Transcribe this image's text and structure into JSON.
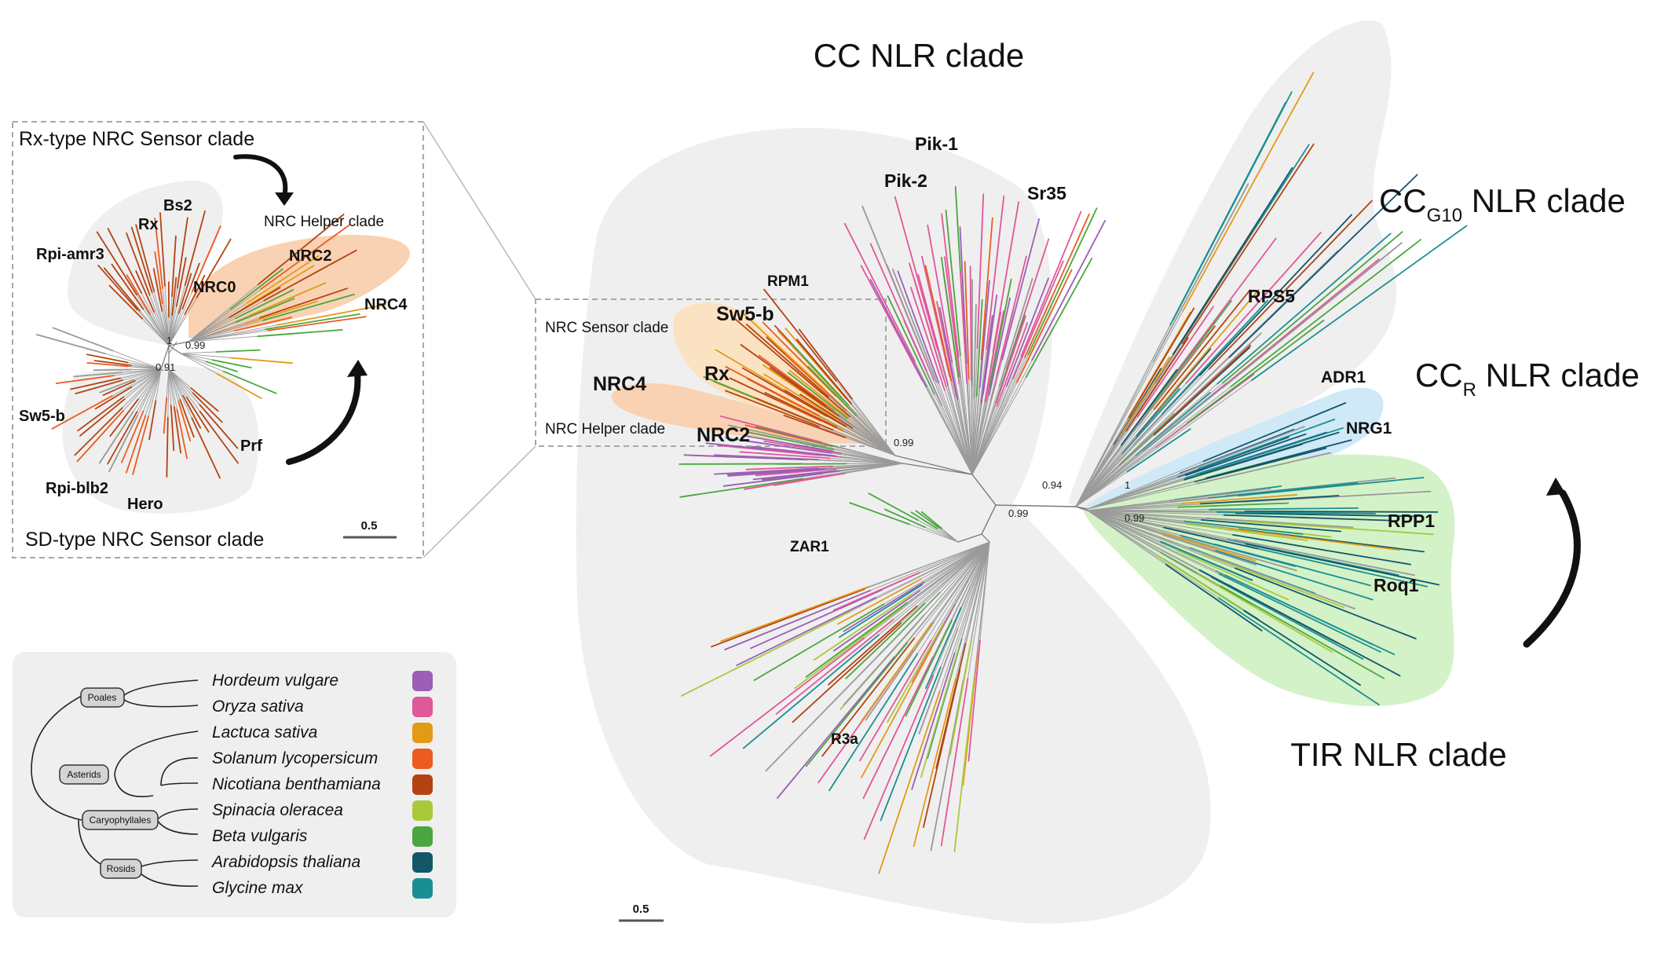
{
  "colors": {
    "hordeum": "#9b5fb5",
    "oryza": "#e0579a",
    "lactuca": "#e29a17",
    "solanum": "#ec5b1f",
    "nicotiana": "#b34313",
    "spinacia": "#a9c93a",
    "beta": "#4aa63e",
    "arabidopsis": "#13566a",
    "glycine": "#1a8f93",
    "clade_grey": "#efefef",
    "clade_orange": "#f9d2b3",
    "clade_blue": "#cfe9f7",
    "clade_green": "#d4f2c7",
    "clade_yellow": "#fbe2c2"
  },
  "main": {
    "titles": {
      "cc": "CC NLR clade",
      "ccg10_main": "CC",
      "ccg10_sub": "G10",
      "ccg10_rest": " NLR clade",
      "ccr_main": "CC",
      "ccr_sub": "R",
      "ccr_rest": " NLR clade",
      "tir": "TIR NLR clade"
    },
    "genes": {
      "pik1": "Pik-1",
      "pik2": "Pik-2",
      "sr35": "Sr35",
      "rpm1": "RPM1",
      "sw5b": "Sw5-b",
      "rx": "Rx",
      "nrc4": "NRC4",
      "nrc2": "NRC2",
      "zar1": "ZAR1",
      "r3a": "R3a",
      "rps5": "RPS5",
      "adr1": "ADR1",
      "nrg1": "NRG1",
      "rpp1": "RPP1",
      "roq1": "Roq1"
    },
    "box_labels": {
      "sensor": "NRC Sensor clade",
      "helper": "NRC Helper clade"
    },
    "supports": {
      "s099a": "0.99",
      "s099b": "0.99",
      "s094": "0.94",
      "s1": "1",
      "s099c": "0.99"
    },
    "scale": "0.5"
  },
  "inset": {
    "rx_title": "Rx-type NRC Sensor clade",
    "sd_title": "SD-type NRC Sensor clade",
    "helper_label": "NRC Helper clade",
    "genes": {
      "bs2": "Bs2",
      "rx": "Rx",
      "rpiamr3": "Rpi-amr3",
      "nrc0": "NRC0",
      "nrc2": "NRC2",
      "nrc4": "NRC4",
      "sw5b": "Sw5-b",
      "prf": "Prf",
      "rpiblb2": "Rpi-blb2",
      "hero": "Hero"
    },
    "supports": {
      "s1": "1",
      "s099": "0.99",
      "s091": "0.91"
    },
    "scale": "0.5"
  },
  "legend": {
    "taxa": {
      "poales": "Poales",
      "asterids": "Asterids",
      "caryophyllales": "Caryophyllales",
      "rosids": "Rosids"
    },
    "species": [
      {
        "name": "Hordeum vulgare",
        "color": "#9b5fb5"
      },
      {
        "name": "Oryza sativa",
        "color": "#e0579a"
      },
      {
        "name": "Lactuca sativa",
        "color": "#e29a17"
      },
      {
        "name": "Solanum lycopersicum",
        "color": "#ec5b1f"
      },
      {
        "name": "Nicotiana benthamiana",
        "color": "#b34313"
      },
      {
        "name": "Spinacia oleracea",
        "color": "#a9c93a"
      },
      {
        "name": "Beta vulgaris",
        "color": "#4aa63e"
      },
      {
        "name": "Arabidopsis thaliana",
        "color": "#13566a"
      },
      {
        "name": "Glycine max",
        "color": "#1a8f93"
      }
    ]
  }
}
